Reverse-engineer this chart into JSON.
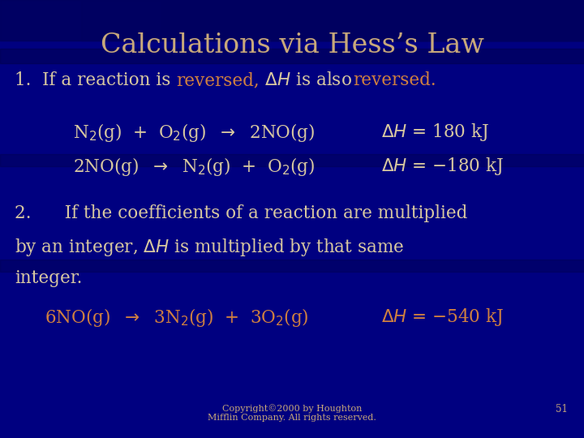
{
  "background_color": "#000080",
  "title": "Calculations via Hess’s Law",
  "title_color": "#C8A87A",
  "title_fontsize": 24,
  "body_color": "#D8C8A0",
  "highlight_color": "#D08040",
  "footer_text": "Copyright©2000 by Houghton\nMifflin Company. All rights reserved.",
  "footer_page": "51",
  "footer_color": "#C8A87A"
}
